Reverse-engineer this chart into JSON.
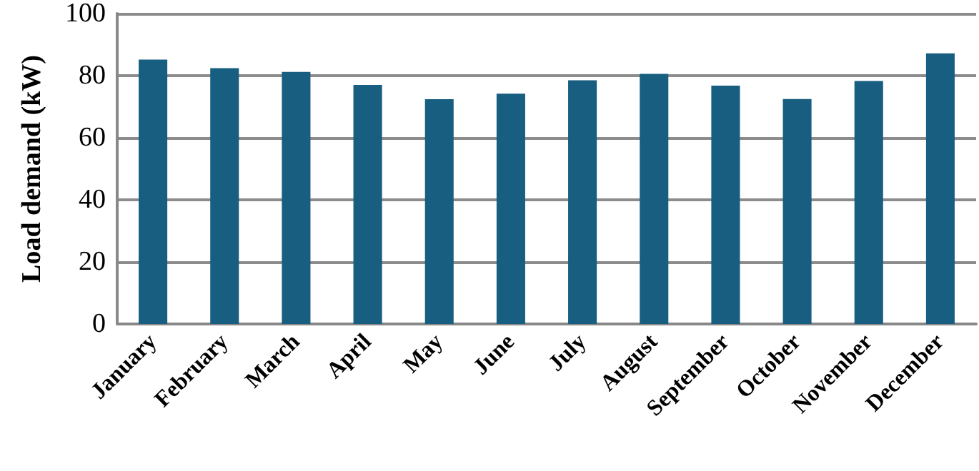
{
  "chart_data": {
    "type": "bar",
    "ylabel": "Load demand (kW)",
    "categories": [
      "January",
      "February",
      "March",
      "April",
      "May",
      "June",
      "July",
      "August",
      "September",
      "October",
      "November",
      "December"
    ],
    "values": [
      85.2,
      82.4,
      81.2,
      77,
      72.4,
      74.2,
      78.5,
      80.6,
      76.8,
      72.5,
      78.3,
      87.2
    ],
    "color": "#175e80",
    "ylim": [
      0,
      100
    ],
    "yticks": [
      0,
      20,
      40,
      60,
      80,
      100
    ],
    "grid": "y"
  }
}
